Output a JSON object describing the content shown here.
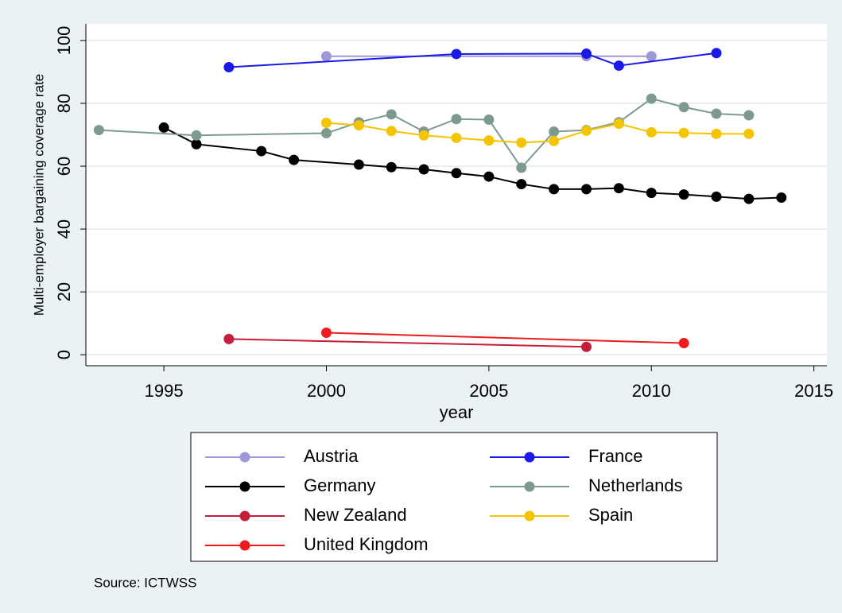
{
  "chart_data": {
    "type": "line",
    "ylabel": "Multi-employer bargaining coverage rate",
    "xlabel": "year",
    "source": "Source: ICTWSS",
    "xlim": [
      1992.6,
      2015.4
    ],
    "xticks": [
      1995,
      2000,
      2005,
      2010,
      2015
    ],
    "ylim": [
      -3.5,
      105.3
    ],
    "yticks": [
      0,
      20,
      40,
      60,
      80,
      100
    ],
    "grid": true,
    "series": [
      {
        "name": "Austria",
        "color": "#9d98d6",
        "x": [
          2000,
          2008,
          2010
        ],
        "values": [
          95,
          95,
          95
        ]
      },
      {
        "name": "France",
        "color": "#1a1ae6",
        "x": [
          1997,
          2004,
          2008,
          2009,
          2012
        ],
        "values": [
          91.5,
          95.7,
          95.8,
          92,
          96
        ]
      },
      {
        "name": "Germany",
        "color": "#000000",
        "x": [
          1995,
          1996,
          1998,
          1999,
          2001,
          2002,
          2003,
          2004,
          2005,
          2006,
          2007,
          2008,
          2009,
          2010,
          2011,
          2012,
          2013,
          2014
        ],
        "values": [
          72.3,
          67,
          64.8,
          62,
          60.5,
          59.7,
          59,
          57.8,
          56.7,
          54.3,
          52.7,
          52.7,
          53,
          51.5,
          51,
          50.3,
          49.6,
          50
        ]
      },
      {
        "name": "Netherlands",
        "color": "#7e9a8f",
        "x": [
          1993,
          1996,
          2000,
          2001,
          2002,
          2003,
          2004,
          2005,
          2006,
          2007,
          2008,
          2009,
          2010,
          2011,
          2012,
          2013
        ],
        "values": [
          71.5,
          69.8,
          70.5,
          74,
          76.5,
          71,
          75,
          74.8,
          59.5,
          71,
          71.5,
          74,
          81.5,
          78.8,
          76.7,
          76.2
        ]
      },
      {
        "name": "New Zealand",
        "color": "#c41e3a",
        "x": [
          1997,
          2008
        ],
        "values": [
          5,
          2.5
        ]
      },
      {
        "name": "Spain",
        "color": "#f5c400",
        "x": [
          2000,
          2001,
          2002,
          2003,
          2004,
          2005,
          2006,
          2007,
          2008,
          2009,
          2010,
          2011,
          2012,
          2013
        ],
        "values": [
          73.8,
          73,
          71.2,
          69.8,
          69,
          68.2,
          67.5,
          68,
          71.3,
          73.5,
          70.8,
          70.6,
          70.3,
          70.3
        ]
      },
      {
        "name": "United Kingdom",
        "color": "#ee1c1c",
        "x": [
          2000,
          2011
        ],
        "values": [
          7,
          3.7
        ]
      }
    ]
  }
}
